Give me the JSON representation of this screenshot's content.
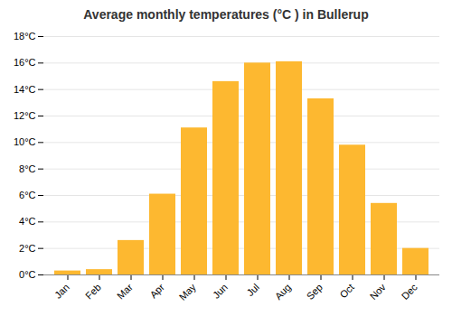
{
  "chart_data": {
    "type": "bar",
    "title": "Average monthly temperatures (°C ) in Bullerup",
    "categories": [
      "Jan",
      "Feb",
      "Mar",
      "Apr",
      "May",
      "Jun",
      "Jul",
      "Aug",
      "Sep",
      "Oct",
      "Nov",
      "Dec"
    ],
    "values": [
      0.3,
      0.4,
      2.6,
      6.1,
      11.1,
      14.6,
      16.0,
      16.1,
      13.3,
      9.8,
      5.4,
      2.0
    ],
    "color": "#FDB830",
    "ylim": [
      0,
      18
    ],
    "yticks": [
      {
        "value": 0,
        "label": "0°C"
      },
      {
        "value": 2,
        "label": "2°C"
      },
      {
        "value": 4,
        "label": "4°C"
      },
      {
        "value": 6,
        "label": "6°C"
      },
      {
        "value": 8,
        "label": "8°C"
      },
      {
        "value": 10,
        "label": "10°C"
      },
      {
        "value": 12,
        "label": "12°C"
      },
      {
        "value": 14,
        "label": "14°C"
      },
      {
        "value": 16,
        "label": "16°C"
      },
      {
        "value": 18,
        "label": "18°C"
      }
    ],
    "grid": true
  }
}
